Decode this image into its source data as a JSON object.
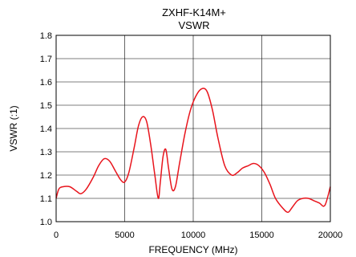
{
  "chart_data": {
    "type": "line",
    "title": "ZXHF-K14M+",
    "subtitle": "VSWR",
    "xlabel": "FREQUENCY (MHz)",
    "ylabel": "VSWR (:1)",
    "xlim": [
      0,
      20000
    ],
    "ylim": [
      1.0,
      1.8
    ],
    "x_ticks": [
      0,
      5000,
      10000,
      15000,
      20000
    ],
    "x_tick_labels": [
      "0",
      "5000",
      "10000",
      "15000",
      "20000"
    ],
    "y_ticks": [
      1.0,
      1.1,
      1.2,
      1.3,
      1.4,
      1.5,
      1.6,
      1.7,
      1.8
    ],
    "y_tick_labels": [
      "1.0",
      "1.1",
      "1.2",
      "1.3",
      "1.4",
      "1.5",
      "1.6",
      "1.7",
      "1.8"
    ],
    "grid": true,
    "line_color": "#e8141c",
    "series": [
      {
        "x": [
          0,
          200,
          500,
          1000,
          1500,
          1800,
          2200,
          2700,
          3100,
          3500,
          3900,
          4300,
          4700,
          5000,
          5300,
          5700,
          6000,
          6300,
          6600,
          6900,
          7200,
          7450,
          7600,
          7800,
          8000,
          8200,
          8450,
          8700,
          9000,
          9400,
          9800,
          10200,
          10600,
          11000,
          11400,
          11800,
          12300,
          12800,
          13200,
          13600,
          14000,
          14400,
          14800,
          15200,
          15600,
          16000,
          16500,
          16900,
          17200,
          17600,
          18000,
          18400,
          18800,
          19200,
          19600,
          20000
        ],
        "y": [
          1.1,
          1.14,
          1.15,
          1.15,
          1.13,
          1.12,
          1.14,
          1.19,
          1.24,
          1.27,
          1.26,
          1.22,
          1.18,
          1.17,
          1.21,
          1.32,
          1.41,
          1.45,
          1.43,
          1.33,
          1.2,
          1.1,
          1.17,
          1.28,
          1.31,
          1.23,
          1.14,
          1.15,
          1.25,
          1.38,
          1.48,
          1.54,
          1.57,
          1.56,
          1.48,
          1.36,
          1.24,
          1.2,
          1.21,
          1.23,
          1.24,
          1.25,
          1.24,
          1.21,
          1.16,
          1.1,
          1.06,
          1.04,
          1.06,
          1.09,
          1.1,
          1.1,
          1.09,
          1.08,
          1.07,
          1.15
        ]
      }
    ]
  }
}
